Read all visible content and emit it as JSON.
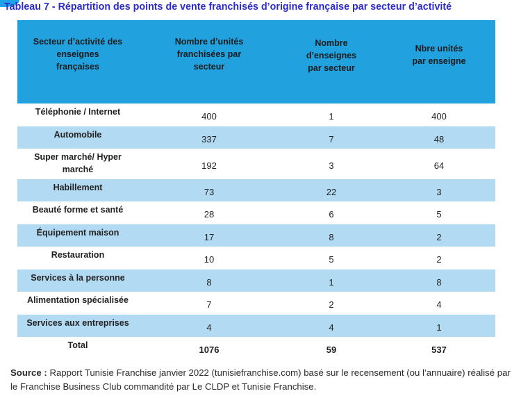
{
  "title": "Tableau 7 - Répartition des points de vente franchisés d’origine française par secteur d’activité",
  "table": {
    "headers": [
      [
        "Secteur d’activité des",
        "enseignes",
        "françaises"
      ],
      [
        "Nombre d’unités",
        "franchisées par",
        "secteur"
      ],
      [
        "Nombre",
        "d’enseignes",
        "par secteur"
      ],
      [
        "Nbre unités",
        "par enseigne"
      ]
    ],
    "rows": [
      {
        "label": [
          "Téléphonie / Internet"
        ],
        "units": "400",
        "brands": "1",
        "per_brand": "400"
      },
      {
        "label": [
          "Automobile"
        ],
        "units": "337",
        "brands": "7",
        "per_brand": "48"
      },
      {
        "label": [
          "Super marché/ Hyper",
          "marché"
        ],
        "units": "192",
        "brands": "3",
        "per_brand": "64"
      },
      {
        "label": [
          "Habillement"
        ],
        "units": "73",
        "brands": "22",
        "per_brand": "3"
      },
      {
        "label": [
          "Beauté forme et santé"
        ],
        "units": "28",
        "brands": "6",
        "per_brand": "5"
      },
      {
        "label": [
          "Équipement maison"
        ],
        "units": "17",
        "brands": "8",
        "per_brand": "2"
      },
      {
        "label": [
          "Restauration"
        ],
        "units": "10",
        "brands": "5",
        "per_brand": "2"
      },
      {
        "label": [
          "Services à la personne"
        ],
        "units": "8",
        "brands": "1",
        "per_brand": "8"
      },
      {
        "label": [
          "Alimentation spécialisée"
        ],
        "units": "7",
        "brands": "2",
        "per_brand": "4"
      },
      {
        "label": [
          "Services aux entreprises"
        ],
        "units": "4",
        "brands": "4",
        "per_brand": "1"
      }
    ],
    "total": {
      "label": "Total",
      "units": "1076",
      "brands": "59",
      "per_brand": "537"
    }
  },
  "source": {
    "label": "Source :",
    "text": "Rapport Tunisie Franchise janvier 2022 (tunisiefranchise.com) basé sur le recensement (ou l’annuaire) réalisé par le Franchise Business Club commandité par Le CLDP et Tunisie Franchise."
  },
  "colors": {
    "title": "#2b2bcc",
    "header_bg": "#22a1df",
    "stripe": "#b3daf3",
    "accent": "#1ea1e6"
  }
}
